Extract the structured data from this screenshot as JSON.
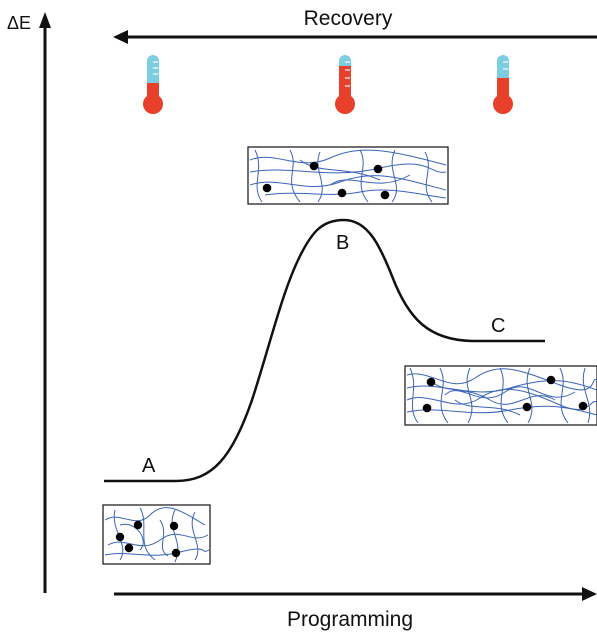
{
  "axis": {
    "y_label": "ΔE",
    "top_arrow_label": "Recovery",
    "bottom_arrow_label": "Programming"
  },
  "states": [
    {
      "label": "A"
    },
    {
      "label": "B"
    },
    {
      "label": "C"
    }
  ],
  "thermometers": [
    {
      "icon": "thermometer-icon",
      "level": "low"
    },
    {
      "icon": "thermometer-icon",
      "level": "high"
    },
    {
      "icon": "thermometer-icon",
      "level": "medium"
    }
  ],
  "colors": {
    "ink": "#111111",
    "fiber": "#3a64b8",
    "crosslink": "#000000",
    "thermo_cold": "#7dcde0",
    "thermo_hot": "#e8402a"
  }
}
